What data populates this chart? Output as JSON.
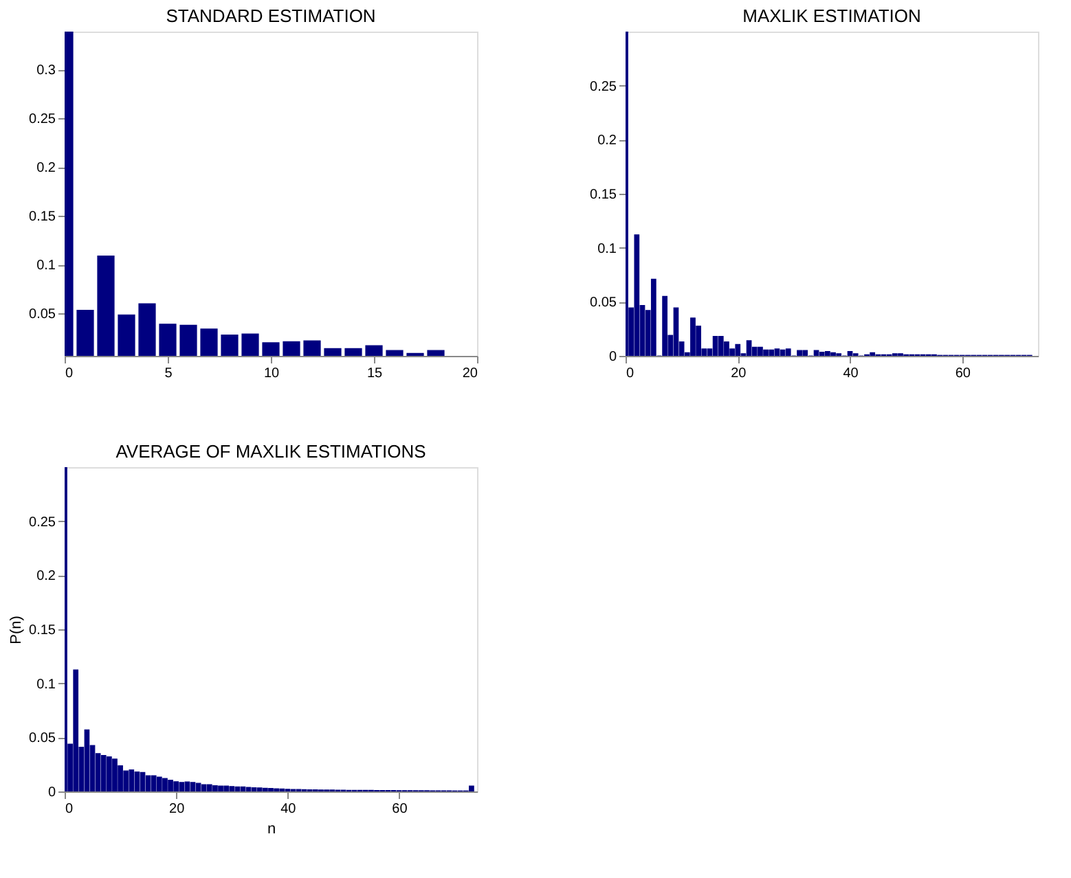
{
  "chart_data": [
    {
      "type": "bar",
      "title": "STANDARD ESTIMATION",
      "x": [
        0,
        1,
        2,
        3,
        4,
        5,
        6,
        7,
        8,
        9,
        10,
        11,
        12,
        13,
        14,
        15,
        16,
        17,
        18
      ],
      "values": [
        0.339,
        0.0533,
        0.109,
        0.0486,
        0.06,
        0.039,
        0.038,
        0.034,
        0.028,
        0.029,
        0.02,
        0.021,
        0.022,
        0.014,
        0.014,
        0.017,
        0.012,
        0.009,
        0.012
      ],
      "color": "#000080",
      "xlim": [
        0,
        20
      ],
      "xticks": [
        0,
        5,
        10,
        15,
        20
      ],
      "ylim": [
        0.0065,
        0.339
      ],
      "yticks": [
        0.05,
        0.1,
        0.15,
        0.2,
        0.25,
        0.3
      ]
    },
    {
      "type": "bar",
      "title": "MAXLIK  ESTIMATION",
      "x": [
        0,
        1,
        2,
        3,
        4,
        5,
        6,
        7,
        8,
        9,
        10,
        11,
        12,
        13,
        14,
        15,
        16,
        17,
        18,
        19,
        20,
        21,
        22,
        23,
        24,
        25,
        26,
        27,
        28,
        29,
        30,
        31,
        32,
        33,
        34,
        35,
        36,
        37,
        38,
        39,
        40,
        41,
        42,
        43,
        44,
        45,
        46,
        47,
        48,
        49,
        50,
        51,
        52,
        53,
        54,
        55,
        56,
        57,
        58,
        59,
        60,
        61,
        62,
        63,
        64,
        65,
        66,
        67,
        68,
        69,
        70,
        71,
        72
      ],
      "values": [
        0.3,
        0.0445,
        0.112,
        0.0466,
        0.042,
        0.071,
        0,
        0.055,
        0.019,
        0.0445,
        0.013,
        0.003,
        0.035,
        0.0276,
        0.0064,
        0.0064,
        0.018,
        0.018,
        0.013,
        0.0064,
        0.0106,
        0.002,
        0.014,
        0.008,
        0.008,
        0.0055,
        0.0055,
        0.0064,
        0.0055,
        0.0064,
        0,
        0.005,
        0.005,
        0,
        0.005,
        0.0034,
        0.004,
        0.003,
        0.002,
        0,
        0.004,
        0.002,
        0,
        0.001,
        0.003,
        0.001,
        0.001,
        0.001,
        0.002,
        0.002,
        0.001,
        0.001,
        0.001,
        0.001,
        0.001,
        0.001,
        0.0005,
        0.0005,
        0.0005,
        0.0005,
        0.0005,
        0.0005,
        0.0005,
        0.0005,
        0.0005,
        0.0005,
        0.0005,
        0.0005,
        0.0005,
        0.0005,
        0.0005,
        0.0005,
        0.0005
      ],
      "color": "#000080",
      "xlim": [
        0,
        73.5
      ],
      "xticks": [
        0,
        20,
        40,
        60
      ],
      "ylim": [
        0,
        0.3
      ],
      "yticks": [
        0,
        0.05,
        0.1,
        0.15,
        0.2,
        0.25
      ]
    },
    {
      "type": "bar",
      "title": "AVERAGE OF MAXLIK ESTIMATIONS",
      "xlabel": "n",
      "ylabel": "P(n)",
      "x": [
        0,
        1,
        2,
        3,
        4,
        5,
        6,
        7,
        8,
        9,
        10,
        11,
        12,
        13,
        14,
        15,
        16,
        17,
        18,
        19,
        20,
        21,
        22,
        23,
        24,
        25,
        26,
        27,
        28,
        29,
        30,
        31,
        32,
        33,
        34,
        35,
        36,
        37,
        38,
        39,
        40,
        41,
        42,
        43,
        44,
        45,
        46,
        47,
        48,
        49,
        50,
        51,
        52,
        53,
        54,
        55,
        56,
        57,
        58,
        59,
        60,
        61,
        62,
        63,
        64,
        65,
        66,
        67,
        68,
        69,
        70,
        71,
        72,
        73
      ],
      "values": [
        0.3,
        0.0438,
        0.1125,
        0.041,
        0.057,
        0.0425,
        0.035,
        0.0333,
        0.032,
        0.03,
        0.0238,
        0.019,
        0.02,
        0.018,
        0.0175,
        0.0146,
        0.0146,
        0.0133,
        0.012,
        0.0104,
        0.009,
        0.0083,
        0.0088,
        0.0083,
        0.0075,
        0.0063,
        0.0063,
        0.0054,
        0.005,
        0.005,
        0.0046,
        0.0042,
        0.0042,
        0.0038,
        0.0035,
        0.0033,
        0.003,
        0.0028,
        0.0025,
        0.0023,
        0.002,
        0.0019,
        0.0018,
        0.0017,
        0.0016,
        0.0015,
        0.0014,
        0.0013,
        0.0013,
        0.0012,
        0.0012,
        0.0011,
        0.0011,
        0.001,
        0.001,
        0.001,
        0.0009,
        0.0009,
        0.0009,
        0.0009,
        0.0008,
        0.0008,
        0.0008,
        0.0007,
        0.0007,
        0.0007,
        0.0006,
        0.0006,
        0.0006,
        0.0006,
        0.0005,
        0.0005,
        0.0005,
        0.005
      ],
      "color": "#000080",
      "xlim": [
        0,
        74
      ],
      "xticks": [
        0,
        20,
        40,
        60
      ],
      "ylim": [
        0,
        0.3
      ],
      "yticks": [
        0,
        0.05,
        0.1,
        0.15,
        0.2,
        0.25
      ]
    }
  ]
}
